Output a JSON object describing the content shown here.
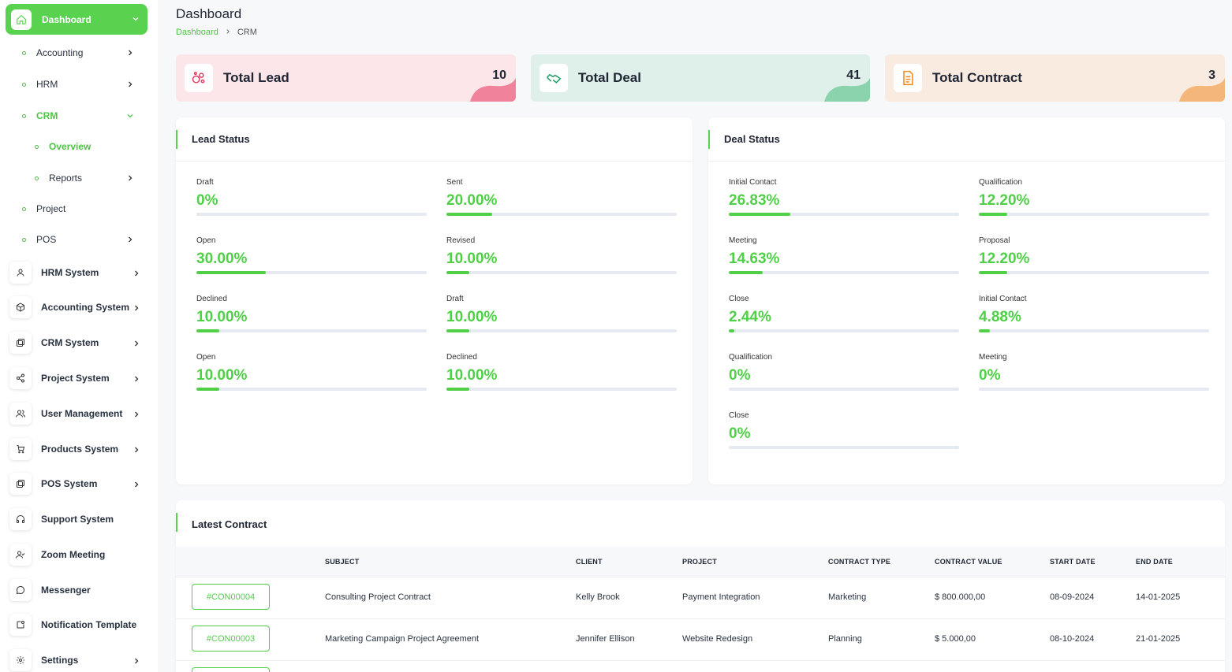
{
  "sidebar": {
    "dashboard": "Dashboard",
    "sub_items": [
      {
        "label": "Accounting"
      },
      {
        "label": "HRM"
      },
      {
        "label": "CRM"
      },
      {
        "label": "Overview"
      },
      {
        "label": "Reports"
      },
      {
        "label": "Project"
      },
      {
        "label": "POS"
      }
    ],
    "main_items": [
      {
        "label": "HRM System",
        "icon": "user-icon"
      },
      {
        "label": "Accounting System",
        "icon": "box-icon"
      },
      {
        "label": "CRM System",
        "icon": "layers-icon"
      },
      {
        "label": "Project System",
        "icon": "share-icon"
      },
      {
        "label": "User Management",
        "icon": "users-icon"
      },
      {
        "label": "Products System",
        "icon": "cart-icon"
      },
      {
        "label": "POS System",
        "icon": "layers-icon"
      },
      {
        "label": "Support System",
        "icon": "headphones-icon"
      },
      {
        "label": "Zoom Meeting",
        "icon": "user-check-icon"
      },
      {
        "label": "Messenger",
        "icon": "message-icon"
      },
      {
        "label": "Notification Template",
        "icon": "notification-icon"
      },
      {
        "label": "Settings",
        "icon": "gear-icon"
      }
    ]
  },
  "header": {
    "title": "Dashboard",
    "breadcrumb": [
      "Dashboard",
      "CRM"
    ]
  },
  "stats": [
    {
      "label": "Total Lead",
      "count": "10",
      "bg": "#fde6ea",
      "accent": "#f0839b"
    },
    {
      "label": "Total Deal",
      "count": "41",
      "bg": "#dff0ea",
      "accent": "#8ad3ad"
    },
    {
      "label": "Total Contract",
      "count": "3",
      "bg": "#f9ebdf",
      "accent": "#f4b679"
    }
  ],
  "lead_status": {
    "title": "Lead Status",
    "metrics": [
      {
        "label": "Draft",
        "value": "0%",
        "pct": 0
      },
      {
        "label": "Sent",
        "value": "20.00%",
        "pct": 20
      },
      {
        "label": "Open",
        "value": "30.00%",
        "pct": 30
      },
      {
        "label": "Revised",
        "value": "10.00%",
        "pct": 10
      },
      {
        "label": "Declined",
        "value": "10.00%",
        "pct": 10
      },
      {
        "label": "Draft",
        "value": "10.00%",
        "pct": 10
      },
      {
        "label": "Open",
        "value": "10.00%",
        "pct": 10
      },
      {
        "label": "Declined",
        "value": "10.00%",
        "pct": 10
      }
    ]
  },
  "deal_status": {
    "title": "Deal Status",
    "metrics": [
      {
        "label": "Initial Contact",
        "value": "26.83%",
        "pct": 26.83
      },
      {
        "label": "Qualification",
        "value": "12.20%",
        "pct": 12.2
      },
      {
        "label": "Meeting",
        "value": "14.63%",
        "pct": 14.63
      },
      {
        "label": "Proposal",
        "value": "12.20%",
        "pct": 12.2
      },
      {
        "label": "Close",
        "value": "2.44%",
        "pct": 2.44
      },
      {
        "label": "Initial Contact",
        "value": "4.88%",
        "pct": 4.88
      },
      {
        "label": "Qualification",
        "value": "0%",
        "pct": 0
      },
      {
        "label": "Meeting",
        "value": "0%",
        "pct": 0
      },
      {
        "label": "Close",
        "value": "0%",
        "pct": 0
      }
    ]
  },
  "latest_contract": {
    "title": "Latest Contract",
    "columns": [
      "SUBJECT",
      "CLIENT",
      "PROJECT",
      "CONTRACT TYPE",
      "CONTRACT VALUE",
      "START DATE",
      "END DATE"
    ],
    "rows": [
      {
        "id": "#CON00004",
        "subject": "Consulting Project Contract",
        "client": "Kelly Brook",
        "project": "Payment Integration",
        "type": "Marketing",
        "value": "$ 800.000,00",
        "start": "08-09-2024",
        "end": "14-01-2025"
      },
      {
        "id": "#CON00003",
        "subject": "Marketing Campaign Project Agreement",
        "client": "Jennifer Ellison",
        "project": "Website Redesign",
        "type": "Planning",
        "value": "$ 5.000,00",
        "start": "08-10-2024",
        "end": "21-01-2025"
      }
    ]
  },
  "colors": {
    "accent": "#58d24f",
    "text": "#293240"
  }
}
